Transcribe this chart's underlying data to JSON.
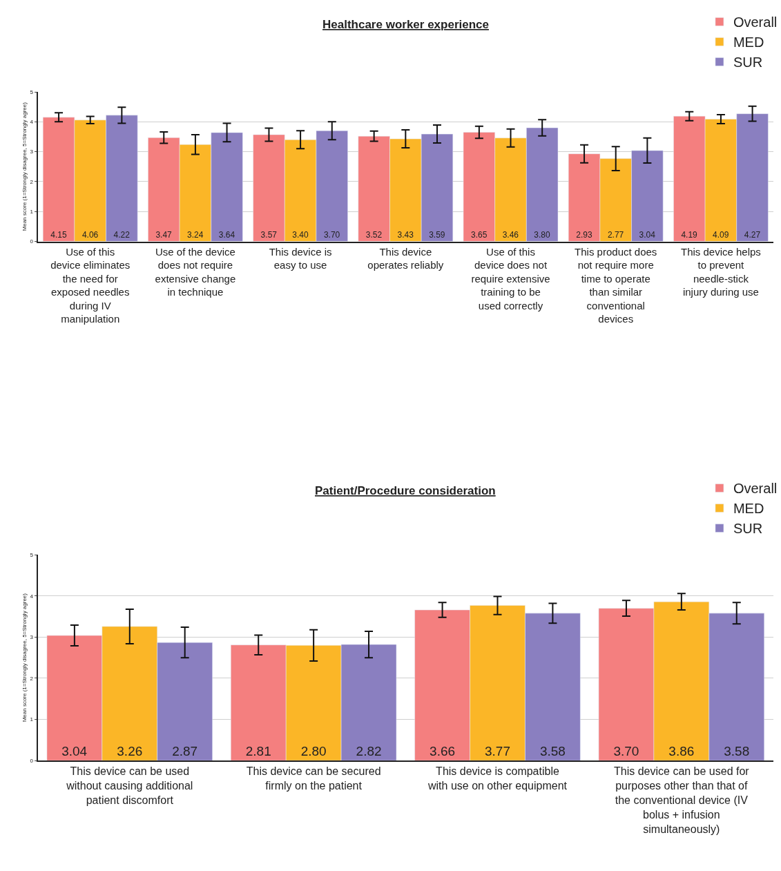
{
  "chart_data": [
    {
      "type": "bar",
      "title": "Healthcare worker experience",
      "ylabel": "Mean score (1=Strongly disagree, 5=Strongly agree)",
      "categories": [
        "Use of this device eliminates the need for exposed needles during IV manipulation",
        "Use of the device does not require extensive change in technique",
        "This device is easy to use",
        "This device operates reliably",
        "Use of this device does not require extensive training to be used correctly",
        "This product does not require more time to operate than similar conventional devices",
        "This device helps to prevent needle-stick injury during use"
      ],
      "series": [
        {
          "name": "Overall",
          "color": "#f47f7f",
          "values": [
            4.15,
            3.47,
            3.57,
            3.52,
            3.65,
            2.93,
            4.19
          ],
          "errors": [
            0.15,
            0.19,
            0.22,
            0.17,
            0.2,
            0.3,
            0.15
          ],
          "value_labels": [
            "4.15",
            "3.47",
            "3.57",
            "3.52",
            "3.65",
            "2.93",
            "4.19"
          ]
        },
        {
          "name": "MED",
          "color": "#fbb627",
          "values": [
            4.06,
            3.24,
            3.4,
            3.43,
            3.46,
            2.77,
            4.09
          ],
          "errors": [
            0.12,
            0.33,
            0.3,
            0.3,
            0.3,
            0.4,
            0.15
          ],
          "value_labels": [
            "4.06",
            "3.24",
            "3.40",
            "3.43",
            "3.46",
            "2.77",
            "4.09"
          ]
        },
        {
          "name": "SUR",
          "color": "#8a7fc0",
          "values": [
            4.22,
            3.64,
            3.7,
            3.59,
            3.8,
            3.04,
            4.27
          ],
          "errors": [
            0.27,
            0.31,
            0.3,
            0.3,
            0.27,
            0.42,
            0.25
          ],
          "value_labels": [
            "4.22",
            "3.64",
            "3.70",
            "3.59",
            "3.80",
            "3.04",
            "4.27"
          ]
        }
      ],
      "ylim": [
        0,
        5
      ],
      "yticks": [
        0,
        1,
        2,
        3,
        4,
        5
      ],
      "grid": "y",
      "legend": "top right"
    },
    {
      "type": "bar",
      "title": "Patient/Procedure consideration",
      "ylabel": "Mean score (1=Strongly disagree, 5=Strongly agree)",
      "categories": [
        "This device can be used without causing additional patient discomfort",
        "This device can be secured firmly on the patient",
        "This device is compatible with use on other equipment",
        "This device can be used for purposes other than that of the conventional device (IV bolus + infusion simultaneously)"
      ],
      "series": [
        {
          "name": "Overall",
          "color": "#f47f7f",
          "values": [
            3.04,
            2.81,
            3.66,
            3.7
          ],
          "errors": [
            0.25,
            0.24,
            0.18,
            0.19
          ],
          "value_labels": [
            "3.04",
            "2.81",
            "3.66",
            "3.70"
          ]
        },
        {
          "name": "MED",
          "color": "#fbb627",
          "values": [
            3.26,
            2.8,
            3.77,
            3.86
          ],
          "errors": [
            0.42,
            0.38,
            0.22,
            0.2
          ],
          "value_labels": [
            "3.26",
            "2.80",
            "3.77",
            "3.86"
          ]
        },
        {
          "name": "SUR",
          "color": "#8a7fc0",
          "values": [
            2.87,
            2.82,
            3.58,
            3.58
          ],
          "errors": [
            0.37,
            0.32,
            0.24,
            0.26
          ],
          "value_labels": [
            "2.87",
            "2.82",
            "3.58",
            "3.58"
          ]
        }
      ],
      "ylim": [
        0,
        5
      ],
      "yticks": [
        0,
        1,
        2,
        3,
        4,
        5
      ],
      "grid": "y",
      "legend": "top right"
    }
  ]
}
